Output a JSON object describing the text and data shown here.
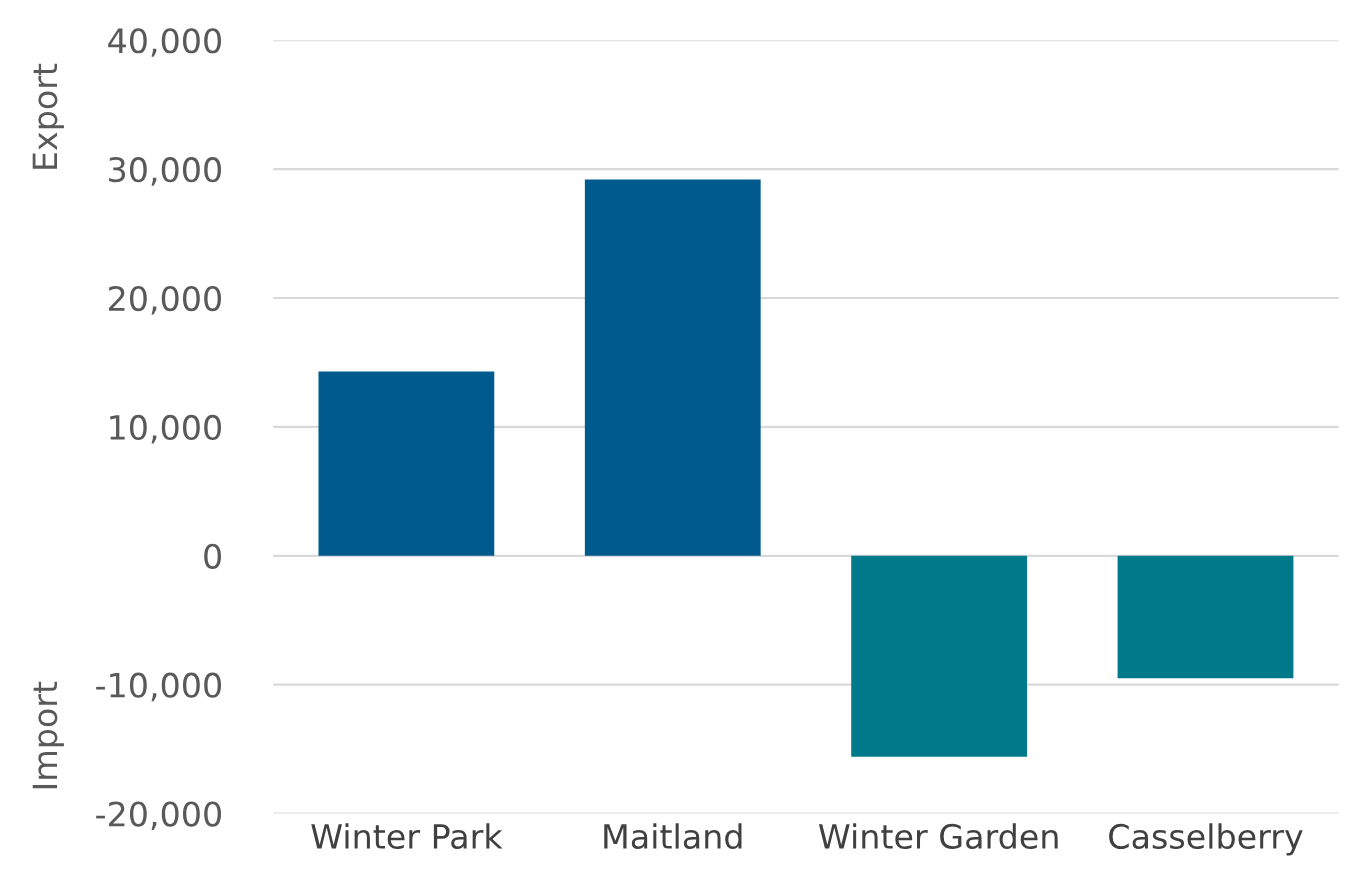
{
  "chart_data": {
    "type": "bar",
    "categories": [
      "Winter Park",
      "Maitland",
      "Winter Garden",
      "Casselberry"
    ],
    "values": [
      14300,
      29200,
      -15600,
      -9500
    ],
    "colors": [
      "#005a8e",
      "#005a8e",
      "#007a8a",
      "#007a8a"
    ],
    "ylim": [
      -20000,
      40000
    ],
    "yticks": [
      {
        "value": -20000,
        "label": "-20,000"
      },
      {
        "value": -10000,
        "label": "-10,000"
      },
      {
        "value": 0,
        "label": "0"
      },
      {
        "value": 10000,
        "label": "10,000"
      },
      {
        "value": 20000,
        "label": "20,000"
      },
      {
        "value": 30000,
        "label": "30,000"
      },
      {
        "value": 40000,
        "label": "40,000"
      }
    ],
    "annotations": [
      "Export",
      "Import"
    ],
    "grid": "y"
  }
}
